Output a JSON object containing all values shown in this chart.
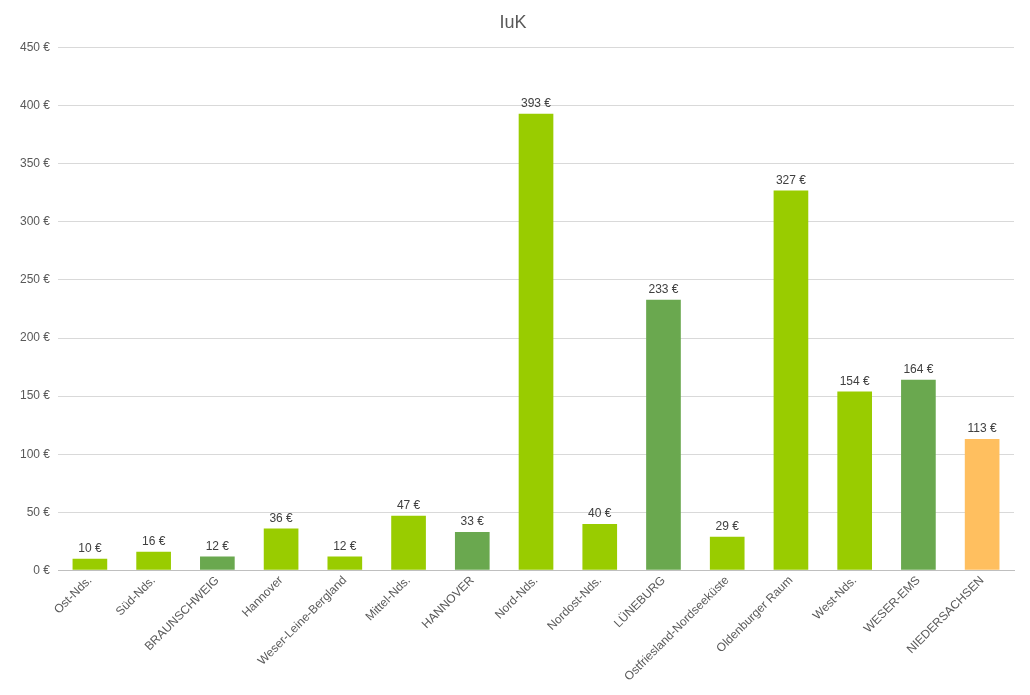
{
  "chart_data": {
    "type": "bar",
    "title": "IuK",
    "categories": [
      "Ost-Nds.",
      "Süd-Nds.",
      "BRAUNSCHWEIG",
      "Hannover",
      "Weser-Leine-Bergland",
      "Mittel-Nds.",
      "HANNOVER",
      "Nord-Nds.",
      "Nordost-Nds.",
      "LÜNEBURG",
      "Ostfriesland-Nordseeküste",
      "Oldenburger Raum",
      "West-Nds.",
      "WESER-EMS",
      "NIEDERSACHSEN"
    ],
    "values": [
      10,
      16,
      12,
      36,
      12,
      47,
      33,
      393,
      40,
      233,
      29,
      327,
      154,
      164,
      113
    ],
    "colors": [
      "#99cc00",
      "#99cc00",
      "#6aa84f",
      "#99cc00",
      "#99cc00",
      "#99cc00",
      "#6aa84f",
      "#99cc00",
      "#99cc00",
      "#6aa84f",
      "#99cc00",
      "#99cc00",
      "#99cc00",
      "#6aa84f",
      "#ffbf5f"
    ],
    "value_labels": [
      "10 €",
      "16 €",
      "12 €",
      "36 €",
      "12 €",
      "47 €",
      "33 €",
      "393 €",
      "40 €",
      "233 €",
      "29 €",
      "327 €",
      "154 €",
      "164 €",
      "113 €"
    ],
    "ylim": [
      0,
      450
    ],
    "yticks": [
      {
        "value": 0,
        "label": "0 €"
      },
      {
        "value": 50,
        "label": "50 €"
      },
      {
        "value": 100,
        "label": "100 €"
      },
      {
        "value": 150,
        "label": "150 €"
      },
      {
        "value": 200,
        "label": "200 €"
      },
      {
        "value": 250,
        "label": "250 €"
      },
      {
        "value": 300,
        "label": "300 €"
      },
      {
        "value": 350,
        "label": "350 €"
      },
      {
        "value": 400,
        "label": "400 €"
      },
      {
        "value": 450,
        "label": "450 €"
      }
    ],
    "grid": "y"
  }
}
